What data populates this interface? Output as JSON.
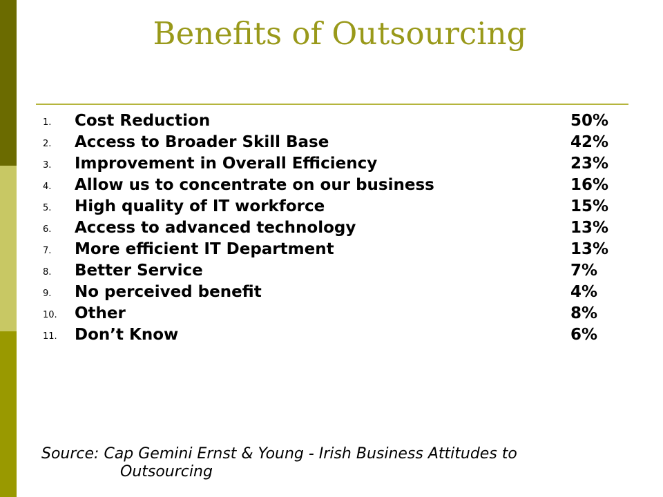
{
  "slide": {
    "title": "Benefits of Outsourcing",
    "items": [
      {
        "number": "1.",
        "label": "Cost Reduction",
        "percent": "50%"
      },
      {
        "number": "2.",
        "label": "Access to Broader Skill Base",
        "percent": "42%"
      },
      {
        "number": "3.",
        "label": "Improvement in Overall Efficiency",
        "percent": "23%"
      },
      {
        "number": "4.",
        "label": "Allow us to concentrate on our business",
        "percent": "16%"
      },
      {
        "number": "5.",
        "label": "High quality of IT workforce",
        "percent": "15%"
      },
      {
        "number": "6.",
        "label": "Access to advanced technology",
        "percent": "13%"
      },
      {
        "number": "7.",
        "label": "More efficient IT Department",
        "percent": "13%"
      },
      {
        "number": "8.",
        "label": "Better Service",
        "percent": "7%"
      },
      {
        "number": "9.",
        "label": "No perceived benefit",
        "percent": "4%"
      },
      {
        "number": "10.",
        "label": "Other",
        "percent": "8%"
      },
      {
        "number": "11.",
        "label": "Don’t Know",
        "percent": "6%"
      }
    ],
    "source_line1": "Source: Cap Gemini Ernst & Young - Irish Business Attitudes to",
    "source_line2": "Outsourcing"
  },
  "colors": {
    "title": "#99991a",
    "sidebar_dark": "#6b6b00",
    "sidebar_light": "#c8c864",
    "sidebar_olive": "#999900",
    "rule": "#b5b53c"
  }
}
